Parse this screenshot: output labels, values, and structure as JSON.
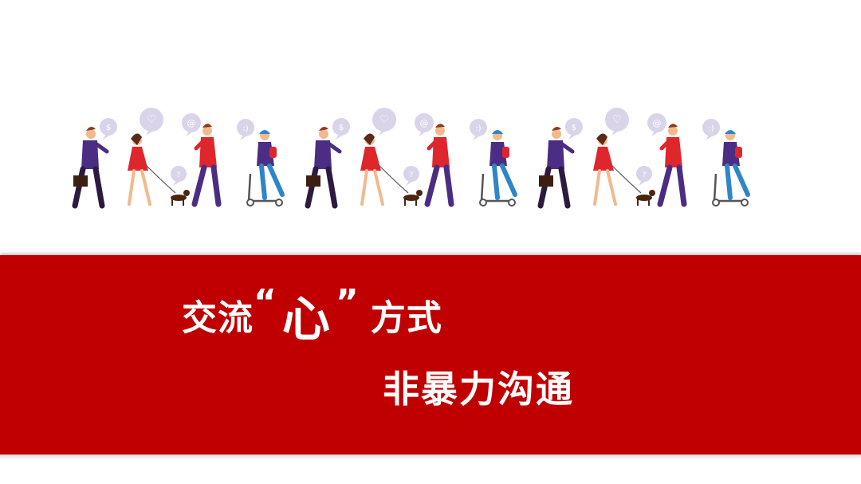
{
  "banner_color": "#c00000",
  "title": {
    "line1_prefix": "交流",
    "quote_open": "“",
    "heart_char": "心",
    "quote_close": "”",
    "line1_suffix": "方式",
    "line2": "非暴力沟通"
  },
  "illustration": {
    "people": [
      {
        "kind": "businessman",
        "bubble": "$"
      },
      {
        "kind": "woman-with-dog",
        "bubble": "♡",
        "bubble2": "?"
      },
      {
        "kind": "man-red",
        "bubble": "@"
      },
      {
        "kind": "boy-scooter",
        "bubble": ":)"
      },
      {
        "kind": "businessman",
        "bubble": "$"
      },
      {
        "kind": "woman-with-dog",
        "bubble": "♡",
        "bubble2": "?"
      },
      {
        "kind": "man-red",
        "bubble": "@"
      },
      {
        "kind": "boy-scooter",
        "bubble": ":)"
      },
      {
        "kind": "businessman",
        "bubble": "$"
      },
      {
        "kind": "woman-with-dog",
        "bubble": "♡",
        "bubble2": "?"
      },
      {
        "kind": "man-red",
        "bubble": "@"
      },
      {
        "kind": "boy-scooter",
        "bubble": ":)"
      }
    ],
    "colors": {
      "purple": "#4b2d83",
      "red": "#e0262d",
      "blue": "#2e86c9",
      "bubble": "#d9d4ea",
      "skin": "#f2b98c",
      "dark": "#2c1b3f"
    }
  }
}
